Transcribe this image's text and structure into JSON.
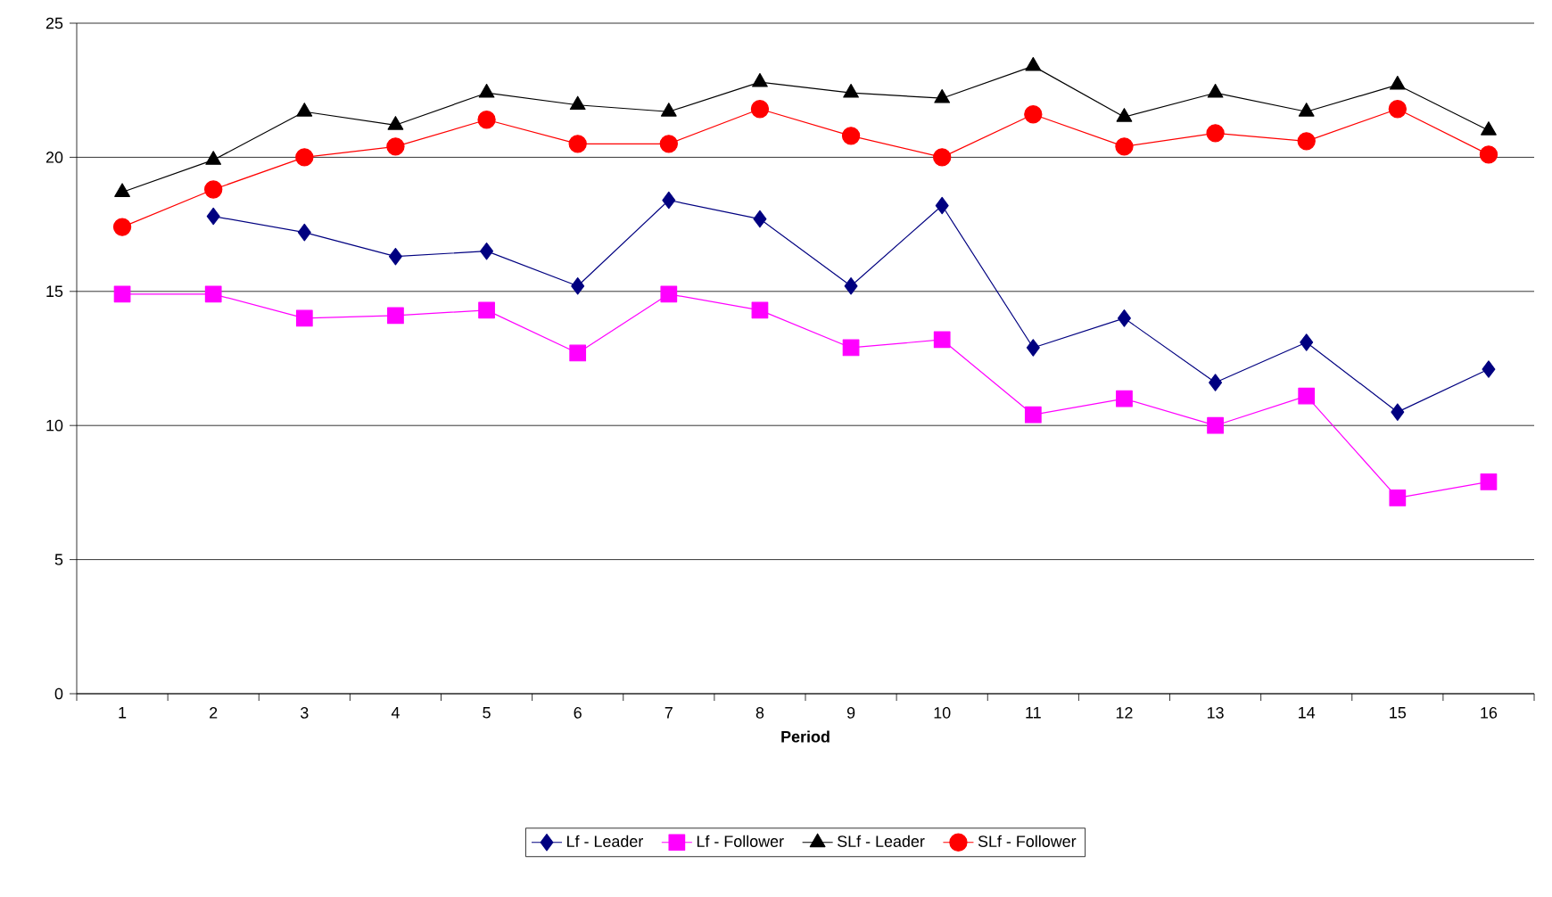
{
  "chart_data": {
    "type": "line",
    "xlabel": "Period",
    "categories": [
      "1",
      "2",
      "3",
      "4",
      "5",
      "6",
      "7",
      "8",
      "9",
      "10",
      "11",
      "12",
      "13",
      "14",
      "15",
      "16"
    ],
    "ylim": [
      0,
      25
    ],
    "yticks": [
      0,
      5,
      10,
      15,
      20,
      25
    ],
    "grid": "y",
    "legend": "bottom",
    "line_style": "solid",
    "series": [
      {
        "name": "Lf - Leader",
        "color": "#000080",
        "marker": "diamond",
        "values": [
          null,
          17.8,
          17.2,
          16.3,
          16.5,
          15.2,
          18.4,
          17.7,
          15.2,
          18.2,
          12.9,
          14.0,
          11.6,
          13.1,
          10.5,
          12.1
        ]
      },
      {
        "name": "Lf - Follower",
        "color": "#ff00ff",
        "marker": "square",
        "values": [
          14.9,
          14.9,
          14.0,
          14.1,
          14.3,
          12.7,
          14.9,
          14.3,
          12.9,
          13.2,
          10.4,
          11.0,
          10.0,
          11.1,
          7.3,
          7.9
        ]
      },
      {
        "name": "SLf - Leader",
        "color": "#000000",
        "marker": "triangle",
        "values": [
          18.7,
          19.9,
          21.7,
          21.2,
          22.4,
          21.95,
          21.7,
          22.8,
          22.4,
          22.2,
          23.4,
          21.5,
          22.4,
          21.7,
          22.7,
          21.0
        ]
      },
      {
        "name": "SLf - Follower",
        "color": "#ff0000",
        "marker": "circle",
        "values": [
          17.4,
          18.8,
          20.0,
          20.4,
          21.4,
          20.5,
          20.5,
          21.8,
          20.8,
          20.0,
          21.6,
          20.4,
          20.9,
          20.6,
          21.8,
          20.1
        ]
      }
    ]
  }
}
